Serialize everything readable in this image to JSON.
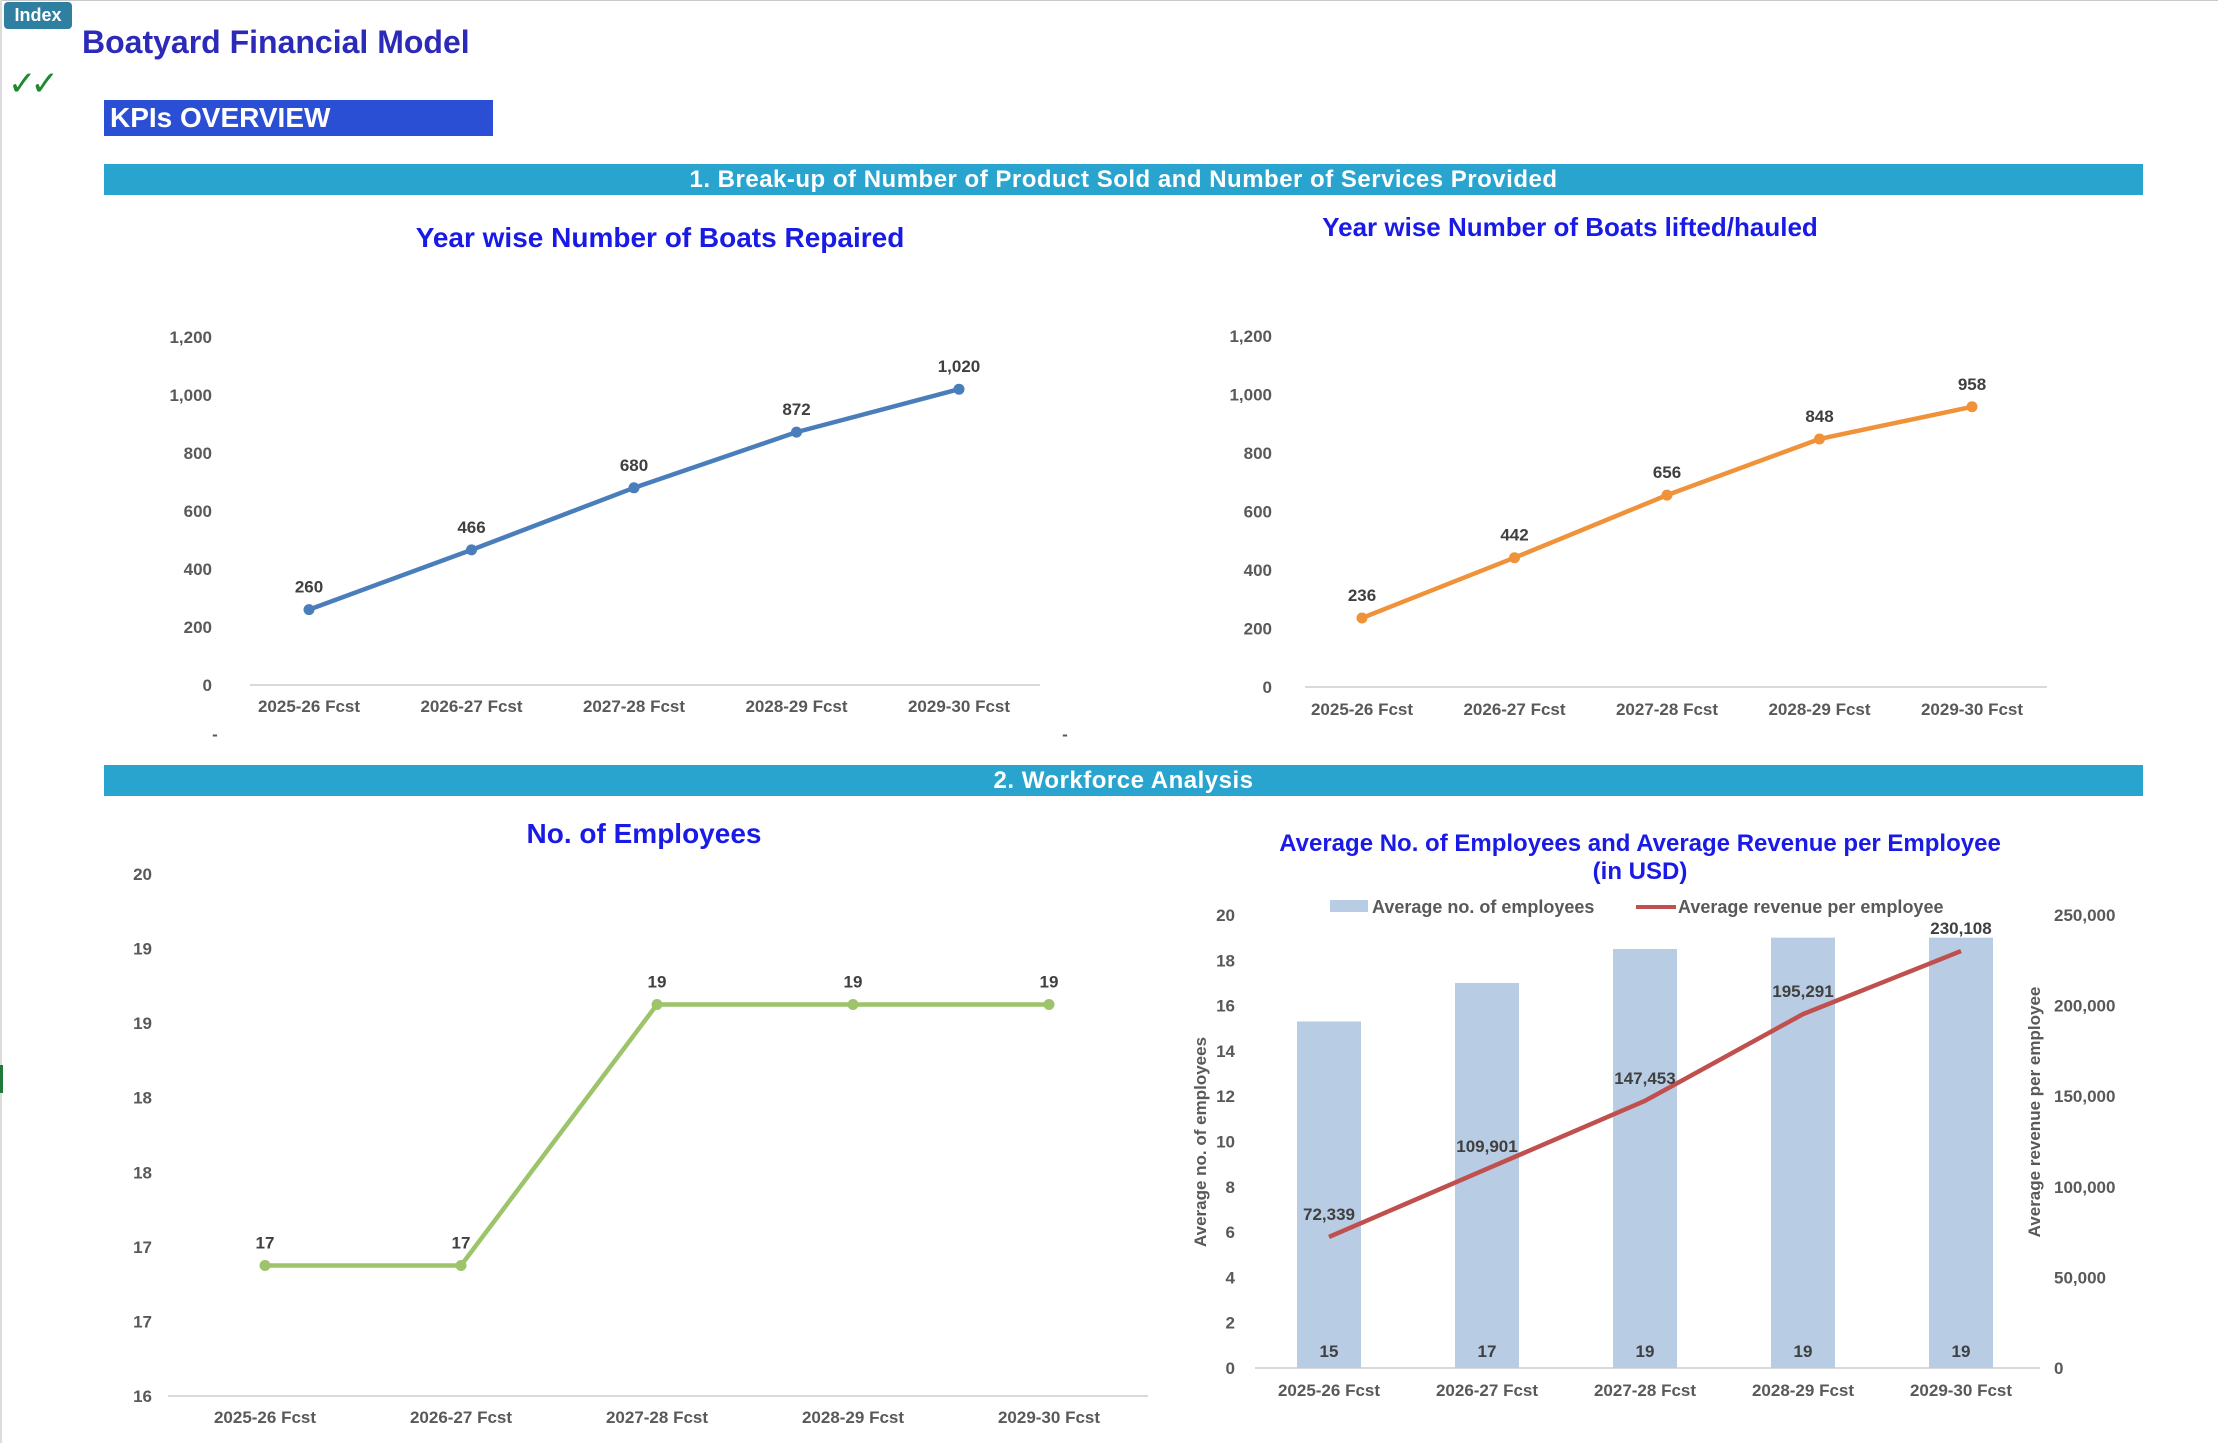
{
  "sheet_tab": "Index",
  "app_title": "Boatyard Financial Model",
  "checkmark": "✓✓",
  "kpi_banner": "KPIs OVERVIEW",
  "sections": [
    "1. Break-up of Number of Product Sold and Number of Services Provided",
    "2. Workforce Analysis"
  ],
  "colors": {
    "section_bar": "#29a4cf",
    "banner": "#2b4fd4",
    "title": "#1a1ae6",
    "repaired_line": "#4a7ebb",
    "hauled_line": "#f0923a",
    "employees_line": "#9dc36b",
    "bar_fill": "#b8cce4",
    "revenue_line": "#c0504d"
  },
  "chart_data": [
    {
      "id": "boats_repaired",
      "type": "line",
      "title": "Year wise Number of Boats Repaired",
      "categories": [
        "2025-26 Fcst",
        "2026-27 Fcst",
        "2027-28 Fcst",
        "2028-29 Fcst",
        "2029-30 Fcst"
      ],
      "values": [
        260,
        466,
        680,
        872,
        1020
      ],
      "value_labels": [
        "260",
        "466",
        "680",
        "872",
        "1,020"
      ],
      "ylim": [
        0,
        1200
      ],
      "yticks": [
        "0",
        "200",
        "400",
        "600",
        "800",
        "1,000",
        "1,200"
      ],
      "grid": false
    },
    {
      "id": "boats_hauled",
      "type": "line",
      "title": "Year wise Number of Boats lifted/hauled",
      "categories": [
        "2025-26 Fcst",
        "2026-27 Fcst",
        "2027-28 Fcst",
        "2028-29 Fcst",
        "2029-30 Fcst"
      ],
      "values": [
        236,
        442,
        656,
        848,
        958
      ],
      "value_labels": [
        "236",
        "442",
        "656",
        "848",
        "958"
      ],
      "ylim": [
        0,
        1200
      ],
      "yticks": [
        "0",
        "200",
        "400",
        "600",
        "800",
        "1,000",
        "1,200"
      ],
      "grid": false
    },
    {
      "id": "employees",
      "type": "line",
      "title": "No. of Employees",
      "categories": [
        "2025-26 Fcst",
        "2026-27 Fcst",
        "2027-28 Fcst",
        "2028-29 Fcst",
        "2029-30 Fcst"
      ],
      "values": [
        17,
        17,
        19,
        19,
        19
      ],
      "value_labels": [
        "17",
        "17",
        "19",
        "19",
        "19"
      ],
      "ylim": [
        16,
        20
      ],
      "yticks": [
        "16",
        "17",
        "17",
        "18",
        "18",
        "19",
        "19",
        "20"
      ],
      "grid": false
    },
    {
      "id": "employees_revenue",
      "type": "bar",
      "title": "Average No. of Employees and Average Revenue per Employee (in USD)",
      "title_lines": [
        "Average No. of Employees and Average Revenue per Employee",
        "(in USD)"
      ],
      "categories": [
        "2025-26 Fcst",
        "2026-27 Fcst",
        "2027-28 Fcst",
        "2028-29 Fcst",
        "2029-30 Fcst"
      ],
      "series": [
        {
          "name": "Average no. of employees",
          "type": "bar",
          "axis": "left",
          "values": [
            15.3,
            17,
            18.5,
            19,
            19
          ],
          "value_labels": [
            "15",
            "17",
            "19",
            "19",
            "19"
          ]
        },
        {
          "name": "Average revenue per employee",
          "type": "line",
          "axis": "right",
          "values": [
            72339,
            109901,
            147453,
            195291,
            230108
          ],
          "value_labels": [
            "72,339",
            "109,901",
            "147,453",
            "195,291",
            "230,108"
          ]
        }
      ],
      "ylabel": "Average no. of  employees",
      "y2label": "Average revenue per employee",
      "ylim": [
        0,
        20
      ],
      "y2lim": [
        0,
        250000
      ],
      "yticks": [
        "0",
        "2",
        "4",
        "6",
        "8",
        "10",
        "12",
        "14",
        "16",
        "18",
        "20"
      ],
      "y2ticks": [
        "0",
        "50,000",
        "100,000",
        "150,000",
        "200,000",
        "250,000"
      ],
      "legend": "top",
      "grid": false
    }
  ]
}
